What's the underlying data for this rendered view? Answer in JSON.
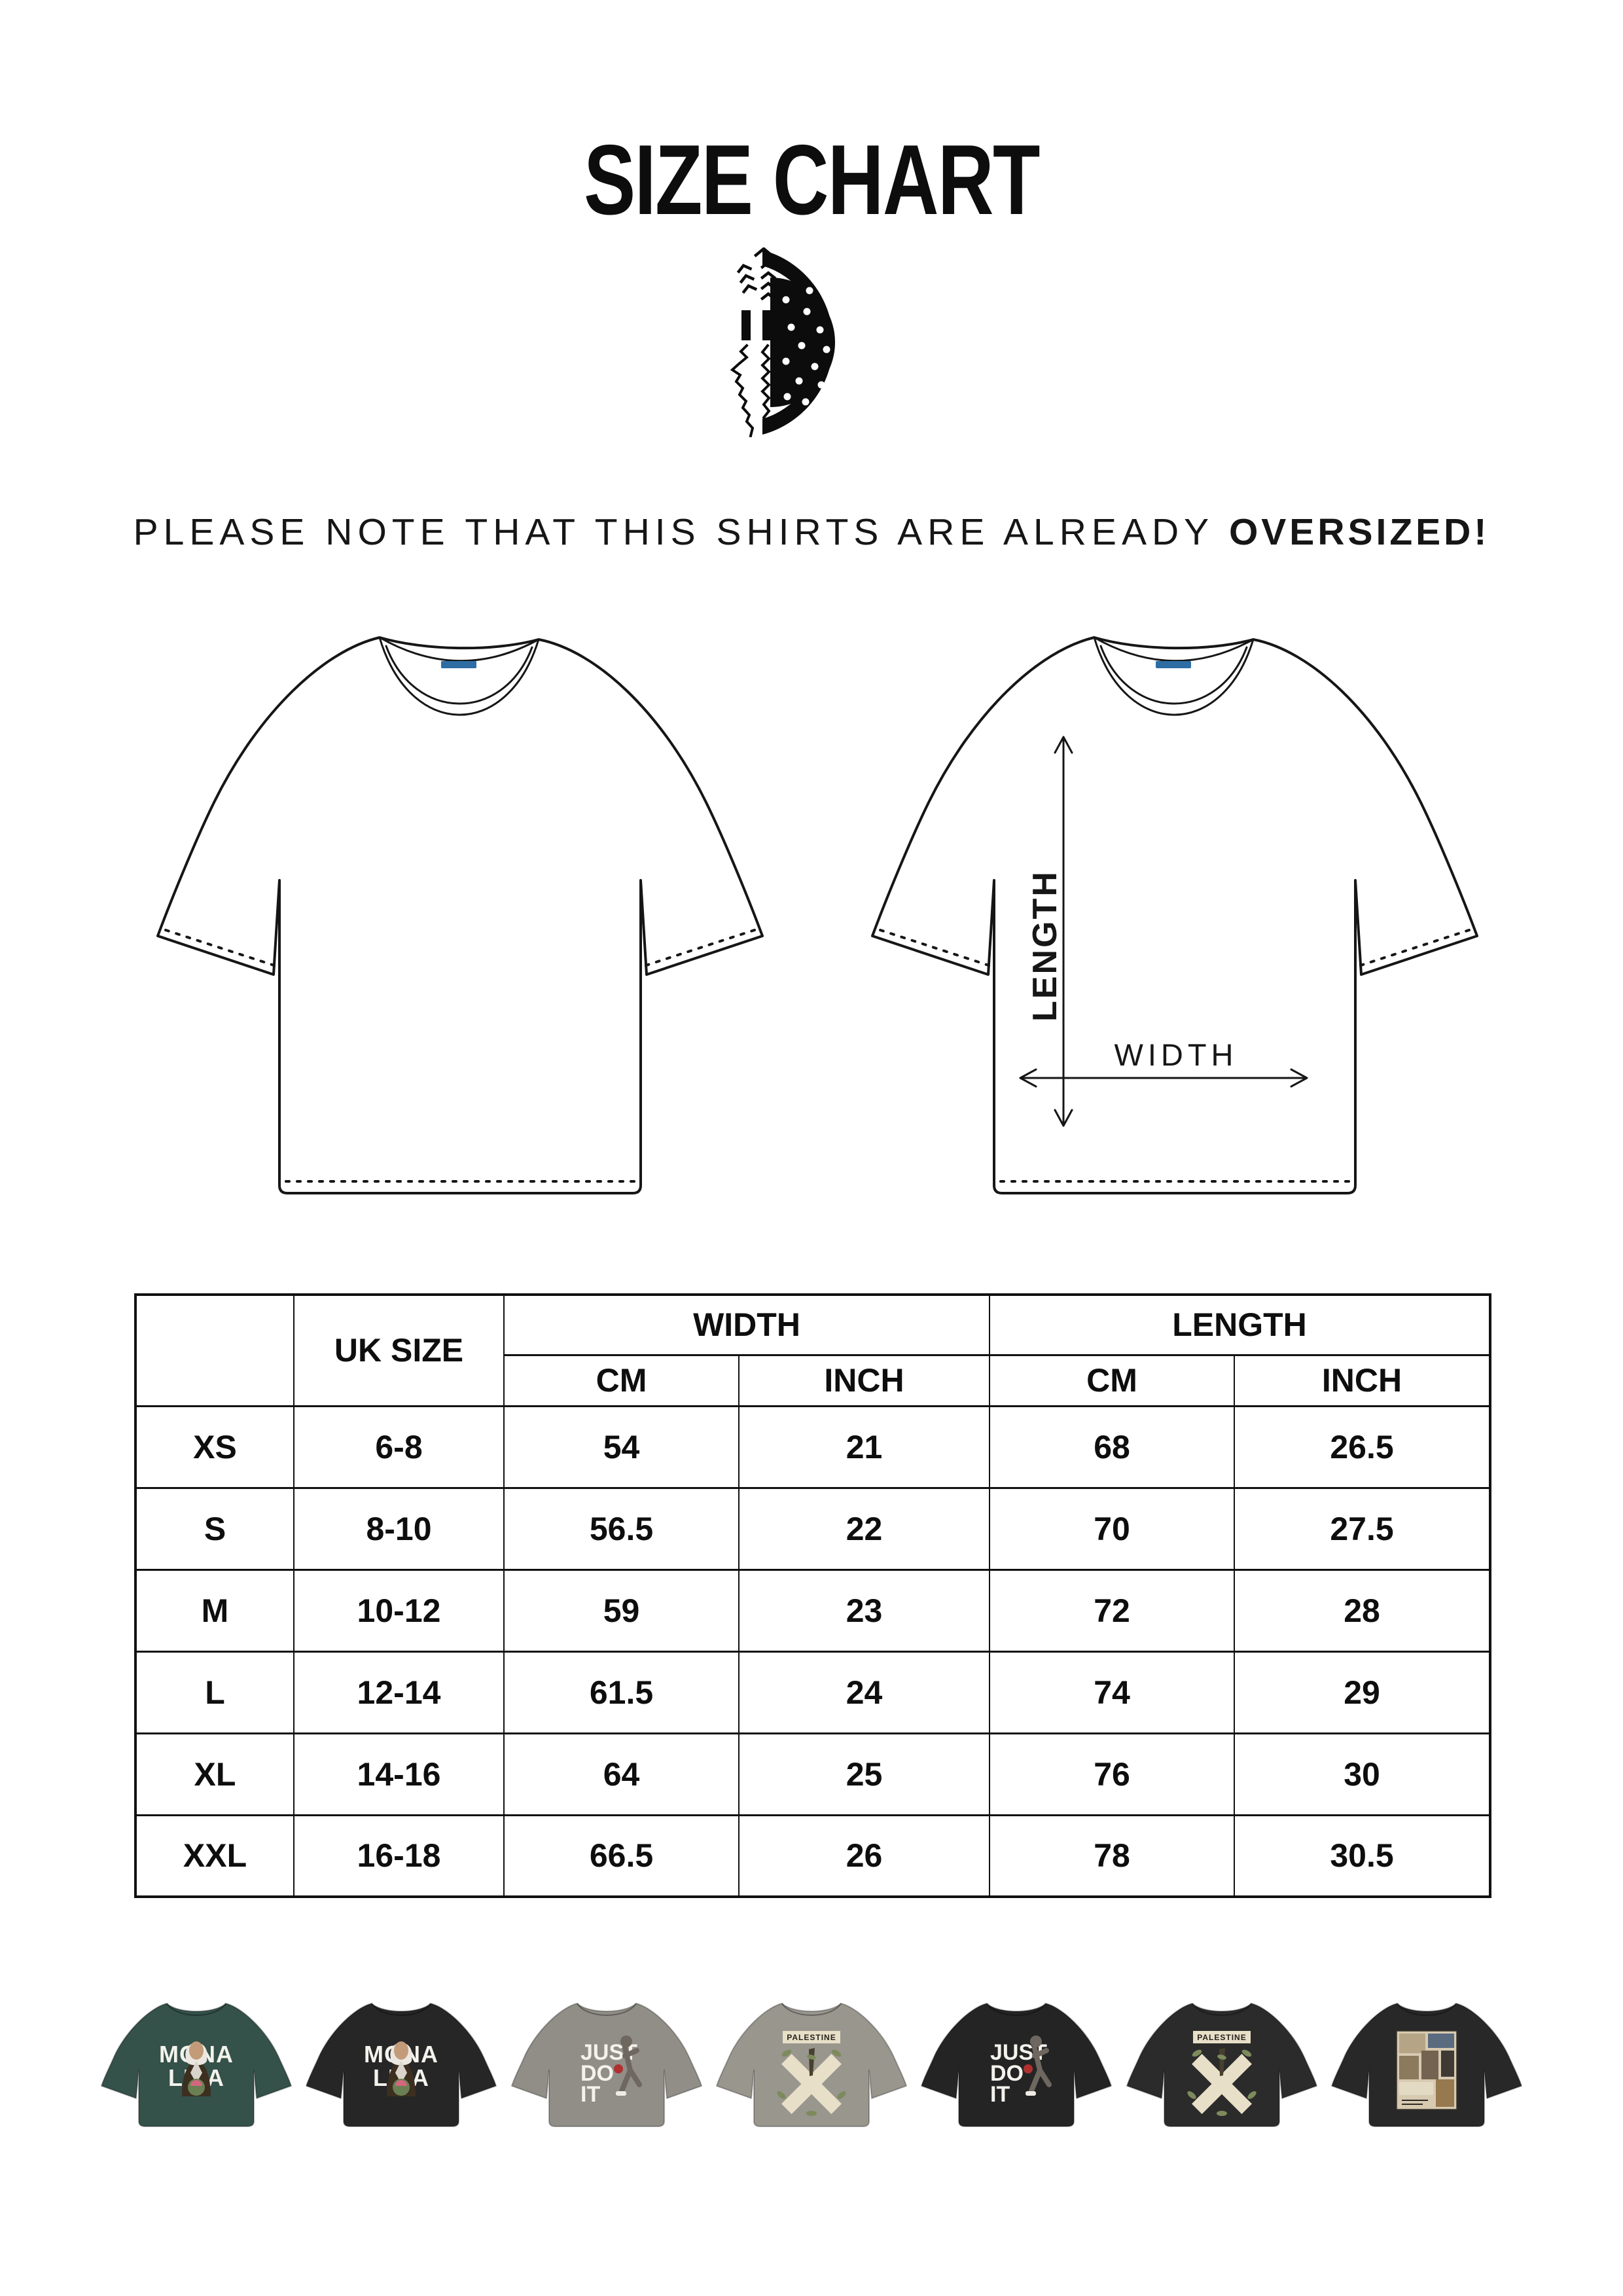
{
  "page": {
    "title": "SIZE CHART"
  },
  "logo": {
    "name": "watermelon-keffiyeh-logo"
  },
  "note": {
    "regular": "PLEASE NOTE THAT THIS SHIRTS ARE ALREADY ",
    "bold": "OVERSIZED!"
  },
  "diagram": {
    "length_label": "LENGTH",
    "width_label": "WIDTH"
  },
  "table": {
    "uk_size_header": "UK SIZE",
    "width_header": "WIDTH",
    "length_header": "LENGTH",
    "sub_headers": [
      "CM",
      "INCH",
      "CM",
      "INCH"
    ],
    "rows": [
      {
        "size": "XS",
        "uk": "6-8",
        "width_cm": "54",
        "width_inch": "21",
        "length_cm": "68",
        "length_inch": "26.5"
      },
      {
        "size": "S",
        "uk": "8-10",
        "width_cm": "56.5",
        "width_inch": "22",
        "length_cm": "70",
        "length_inch": "27.5"
      },
      {
        "size": "M",
        "uk": "10-12",
        "width_cm": "59",
        "width_inch": "23",
        "length_cm": "72",
        "length_inch": "28"
      },
      {
        "size": "L",
        "uk": "12-14",
        "width_cm": "61.5",
        "width_inch": "24",
        "length_cm": "74",
        "length_inch": "29"
      },
      {
        "size": "XL",
        "uk": "14-16",
        "width_cm": "64",
        "width_inch": "25",
        "length_cm": "76",
        "length_inch": "30"
      },
      {
        "size": "XXL",
        "uk": "16-18",
        "width_cm": "66.5",
        "width_inch": "26",
        "length_cm": "78",
        "length_inch": "30.5"
      }
    ]
  },
  "colors": {
    "ink": "#161616",
    "tag_blue": "#2e6da4",
    "cream": "#e8dfc8",
    "olive": "#7d8a5c"
  },
  "thumbnails": [
    {
      "name": "mona-lisa-tee-green",
      "color": "#34514a",
      "print": "mona",
      "lines": [
        "MONA",
        "LISA"
      ]
    },
    {
      "name": "mona-lisa-tee-black",
      "color": "#262626",
      "print": "mona",
      "lines": [
        "MONA",
        "LISA"
      ]
    },
    {
      "name": "just-do-it-tee-grey",
      "color": "#918e88",
      "print": "jdi",
      "lines": [
        "JUST",
        "DO",
        "IT"
      ]
    },
    {
      "name": "palestine-cross-tee-grey",
      "color": "#99968e",
      "print": "cross",
      "lines": [
        "PALESTINE"
      ]
    },
    {
      "name": "just-do-it-tee-black",
      "color": "#242424",
      "print": "jdi",
      "lines": [
        "JUST",
        "DO",
        "IT"
      ]
    },
    {
      "name": "palestine-cross-tee-black",
      "color": "#2b2b2b",
      "print": "cross",
      "lines": [
        "PALESTINE"
      ]
    },
    {
      "name": "palestine-collage-tee-black",
      "color": "#282828",
      "print": "collage",
      "lines": []
    }
  ]
}
